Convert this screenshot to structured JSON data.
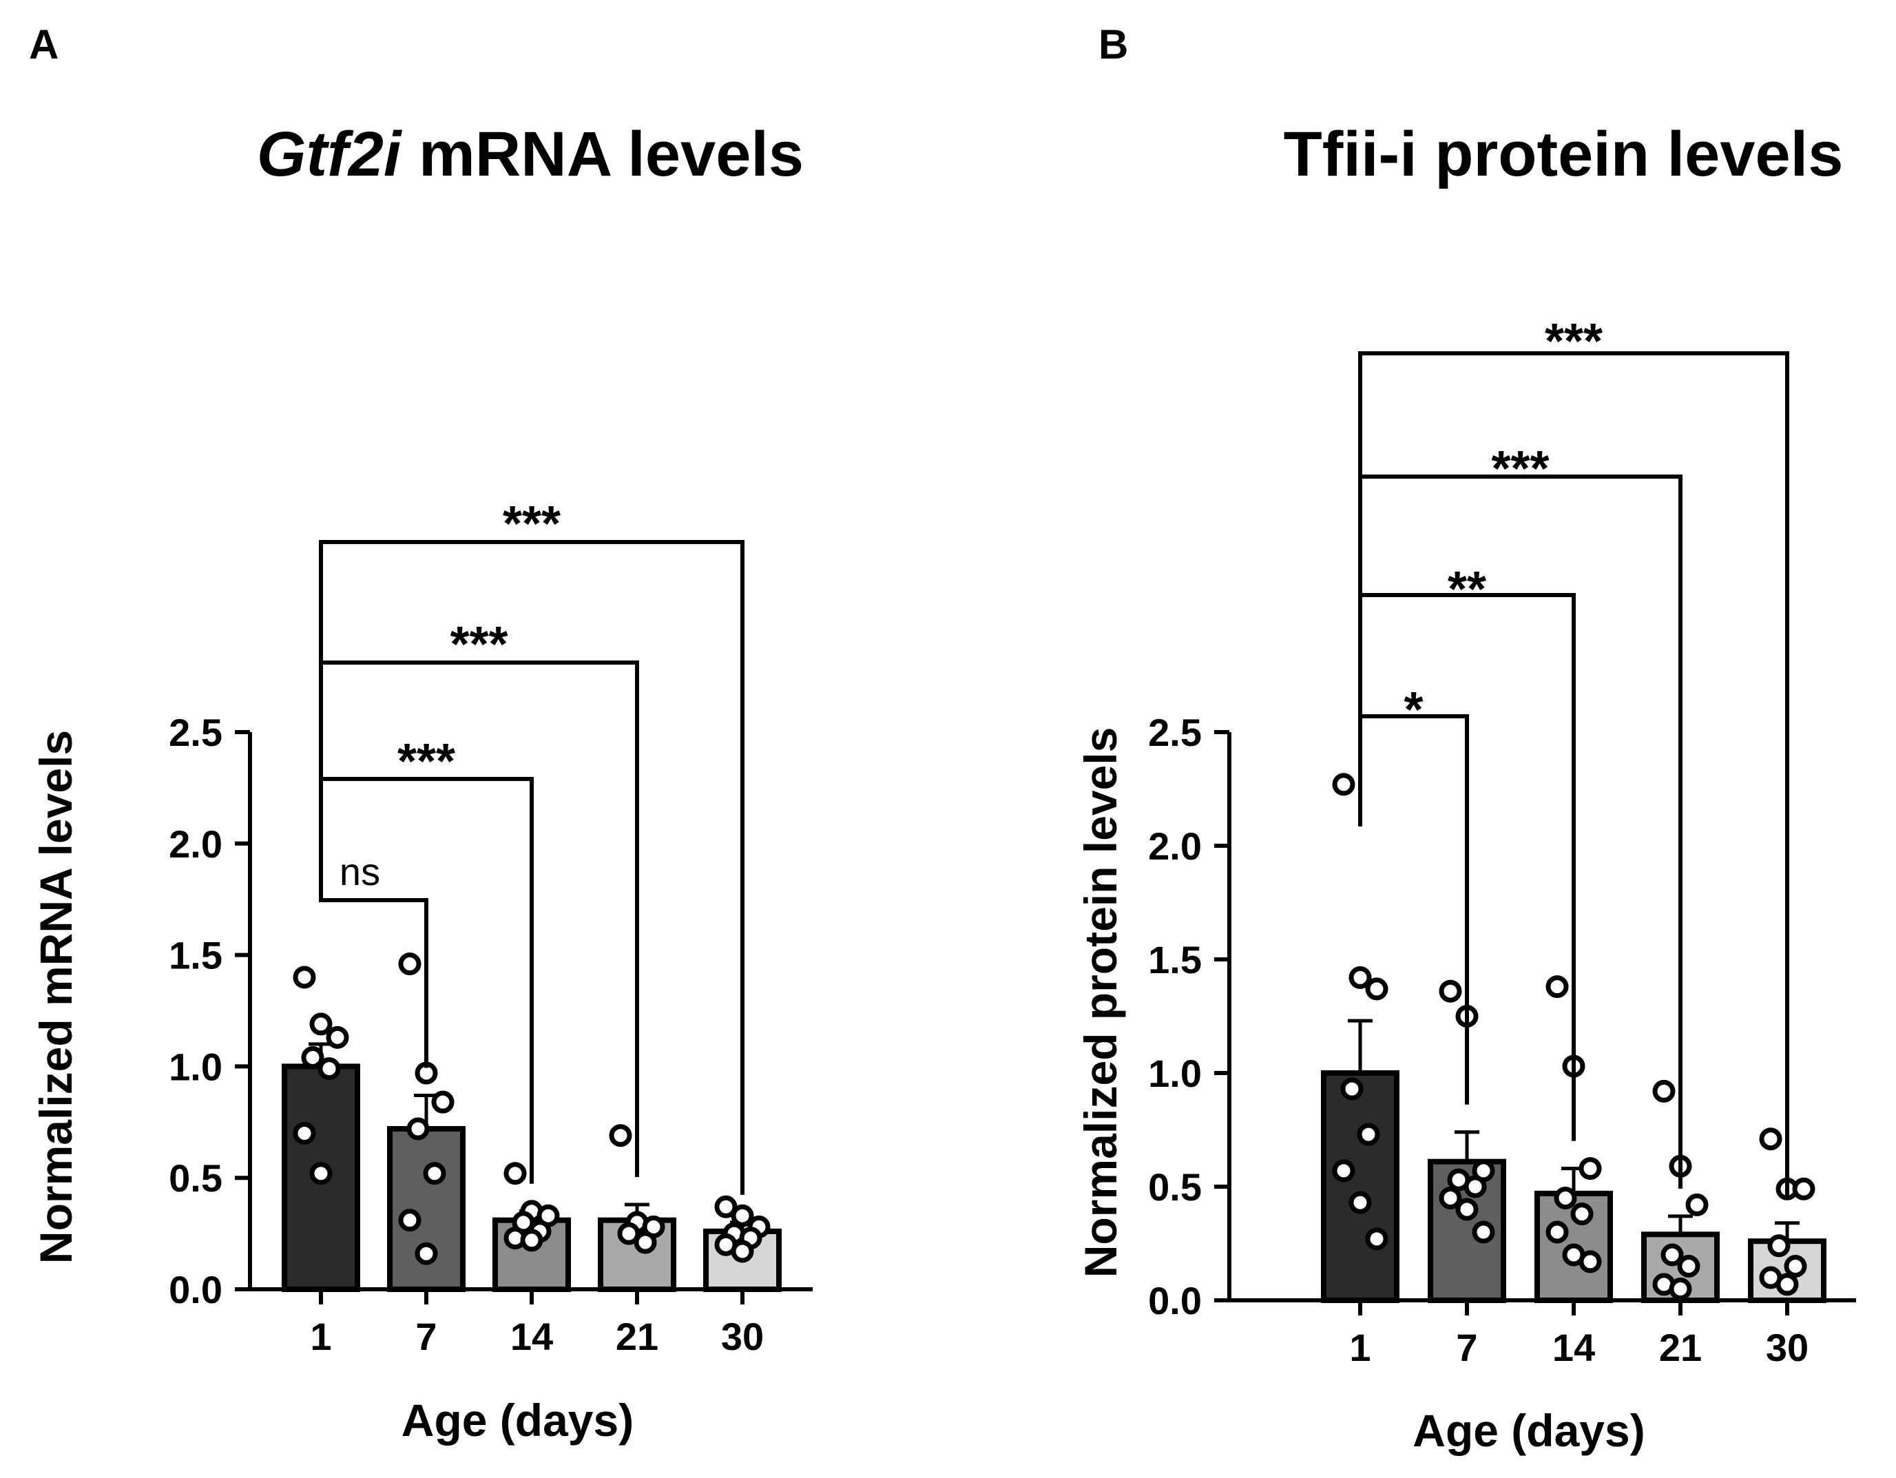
{
  "chart_data": [
    {
      "panel_label": "A",
      "type": "bar",
      "title_italic": "Gtf2i",
      "title_rest": " mRNA levels",
      "xlabel": "Age (days)",
      "ylabel": "Normalized mRNA levels",
      "categories": [
        "1",
        "7",
        "14",
        "21",
        "30"
      ],
      "values": [
        1.0,
        0.72,
        0.31,
        0.31,
        0.26
      ],
      "errors": [
        0.1,
        0.15,
        0.04,
        0.07,
        0.04
      ],
      "bar_colors": [
        "#2b2b2b",
        "#5f5f5f",
        "#8c8c8c",
        "#a9a9a9",
        "#d6d6d6"
      ],
      "ylim": [
        0,
        2.5
      ],
      "yticks": [
        0.0,
        0.5,
        1.0,
        1.5,
        2.0,
        2.5
      ],
      "ytick_labels": [
        "0.0",
        "0.5",
        "1.0",
        "1.5",
        "2.0",
        "2.5"
      ],
      "points": [
        [
          1.4,
          1.19,
          1.13,
          1.04,
          0.99,
          0.7,
          0.52
        ],
        [
          1.46,
          0.97,
          0.84,
          0.72,
          0.52,
          0.31,
          0.16
        ],
        [
          0.52,
          0.35,
          0.33,
          0.3,
          0.26,
          0.23,
          0.22
        ],
        [
          0.69,
          0.3,
          0.28,
          0.25,
          0.21
        ],
        [
          0.37,
          0.33,
          0.28,
          0.25,
          0.23,
          0.2,
          0.17
        ]
      ],
      "comparisons": [
        {
          "from": "1",
          "to": "7",
          "label": "ns"
        },
        {
          "from": "1",
          "to": "14",
          "label": "***"
        },
        {
          "from": "1",
          "to": "21",
          "label": "***"
        },
        {
          "from": "1",
          "to": "30",
          "label": "***"
        }
      ]
    },
    {
      "panel_label": "B",
      "type": "bar",
      "title_italic": "",
      "title_rest": "Tfii-i protein levels",
      "xlabel": "Age (days)",
      "ylabel": "Normalized protein levels",
      "categories": [
        "1",
        "7",
        "14",
        "21",
        "30"
      ],
      "values": [
        1.0,
        0.61,
        0.47,
        0.29,
        0.26
      ],
      "errors": [
        0.23,
        0.13,
        0.11,
        0.08,
        0.08
      ],
      "bar_colors": [
        "#2b2b2b",
        "#5f5f5f",
        "#8c8c8c",
        "#a9a9a9",
        "#d6d6d6"
      ],
      "ylim": [
        0,
        2.5
      ],
      "yticks": [
        0.0,
        0.5,
        1.0,
        1.5,
        2.0,
        2.5
      ],
      "ytick_labels": [
        "0.0",
        "0.5",
        "1.0",
        "1.5",
        "2.0",
        "2.5"
      ],
      "points": [
        [
          2.27,
          1.42,
          1.37,
          0.93,
          0.73,
          0.57,
          0.43,
          0.27
        ],
        [
          1.36,
          1.25,
          0.57,
          0.53,
          0.5,
          0.45,
          0.4,
          0.3
        ],
        [
          1.38,
          1.03,
          0.58,
          0.45,
          0.38,
          0.3,
          0.2,
          0.17
        ],
        [
          0.92,
          0.59,
          0.42,
          0.2,
          0.15,
          0.07,
          0.05
        ],
        [
          0.71,
          0.49,
          0.49,
          0.24,
          0.15,
          0.1,
          0.07
        ]
      ],
      "comparisons": [
        {
          "from": "1",
          "to": "7",
          "label": "*"
        },
        {
          "from": "1",
          "to": "14",
          "label": "**"
        },
        {
          "from": "1",
          "to": "21",
          "label": "***"
        },
        {
          "from": "1",
          "to": "30",
          "label": "***"
        }
      ]
    }
  ]
}
